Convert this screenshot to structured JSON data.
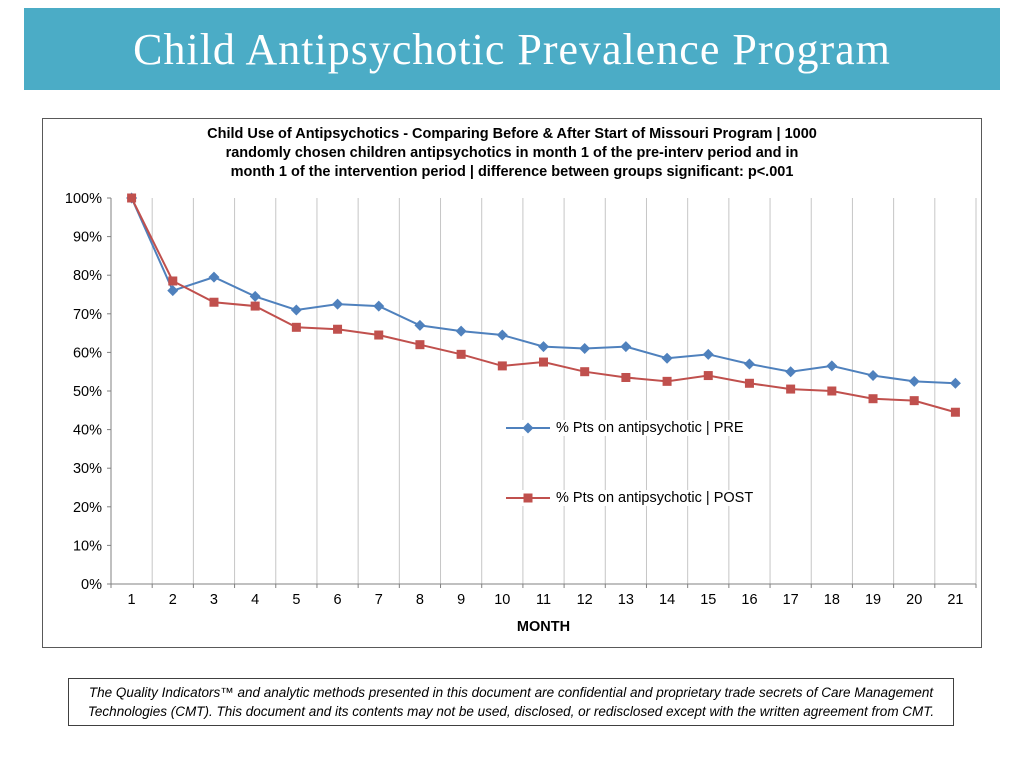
{
  "slide": {
    "title": "Child Antipsychotic Prevalence Program",
    "banner_color": "#4bacc6"
  },
  "chart_data": {
    "type": "line",
    "title_lines": [
      "Child Use of Antipsychotics - Comparing Before & After Start of Missouri Program | 1000",
      "randomly chosen children antipsychotics in month 1 of the pre-interv period and in",
      "month 1 of the intervention period | difference between groups significant: p<.001"
    ],
    "xlabel": "MONTH",
    "x": [
      1,
      2,
      3,
      4,
      5,
      6,
      7,
      8,
      9,
      10,
      11,
      12,
      13,
      14,
      15,
      16,
      17,
      18,
      19,
      20,
      21
    ],
    "y_ticks": [
      "100%",
      "90%",
      "80%",
      "70%",
      "60%",
      "50%",
      "40%",
      "30%",
      "20%",
      "10%",
      "0%"
    ],
    "ylim": [
      0,
      100
    ],
    "grid": "vertical",
    "grid_color": "#c6c6c6",
    "axis_color": "#808080",
    "legend_position": "inside center-right",
    "series": [
      {
        "name": "% Pts on antipsychotic | PRE",
        "marker": "diamond",
        "color": "#4f81bd",
        "values": [
          100,
          76,
          79.5,
          74.5,
          71,
          72.5,
          72,
          67,
          65.5,
          64.5,
          61.5,
          61,
          61.5,
          58.5,
          59.5,
          57,
          55,
          56.5,
          54,
          52.5,
          52
        ]
      },
      {
        "name": "% Pts on antipsychotic | POST",
        "marker": "square",
        "color": "#c0504d",
        "values": [
          100,
          78.5,
          73,
          72,
          66.5,
          66,
          64.5,
          62,
          59.5,
          56.5,
          57.5,
          55,
          53.5,
          52.5,
          54,
          52,
          50.5,
          50,
          48,
          47.5,
          44.5
        ]
      }
    ]
  },
  "footer": {
    "text": "The Quality Indicators™ and analytic methods presented in this document are confidential and proprietary trade secrets of Care Management Technologies (CMT).  This document and its contents may not be used, disclosed, or redisclosed except with the written agreement from CMT."
  }
}
